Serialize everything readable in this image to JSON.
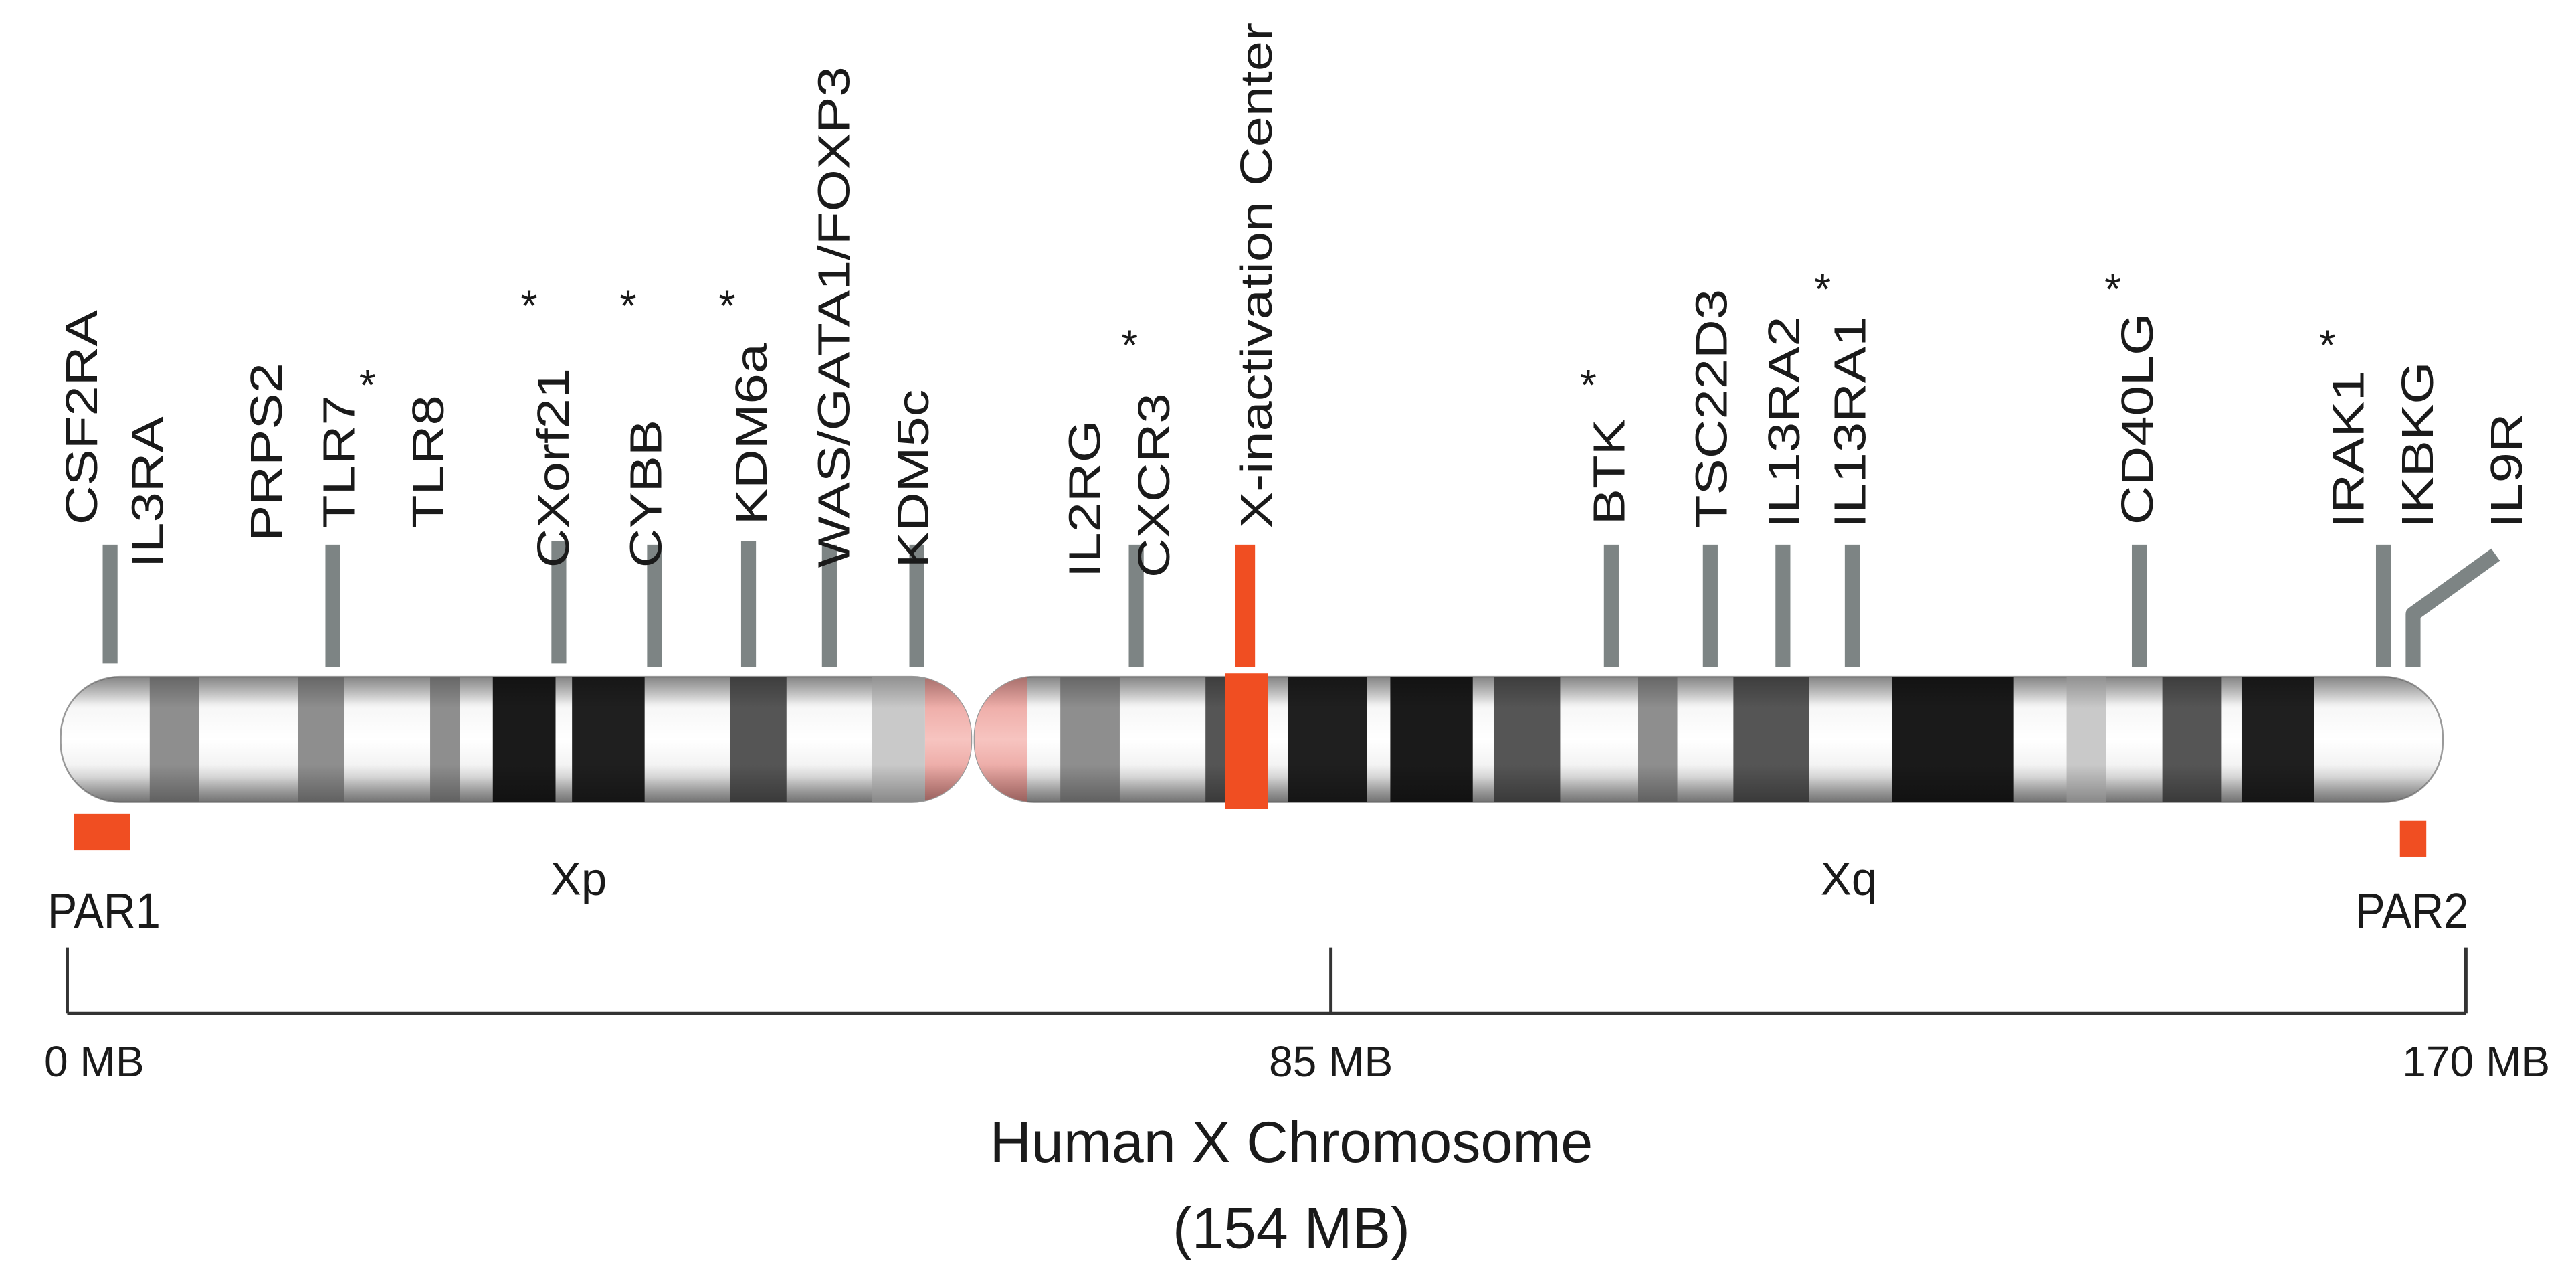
{
  "colors": {
    "gene_marker": "#7d8484",
    "highlight": "#f04e22",
    "centromere": "#f3b1ad",
    "band_dark": "#1a1a1a",
    "band_medium": "#555555",
    "band_light": "#8e8e8e",
    "band_pale": "#c9c9c9",
    "chromosome_body": "#ffffff",
    "text": "#1a1a1a"
  },
  "genes": [
    {
      "label": "CSF2RA",
      "asterisk": false
    },
    {
      "label": "IL3RA",
      "asterisk": false
    },
    {
      "label": "PRPS2",
      "asterisk": false
    },
    {
      "label": "TLR7",
      "asterisk": true
    },
    {
      "label": "TLR8",
      "asterisk": false
    },
    {
      "label": "CXorf21",
      "asterisk": true
    },
    {
      "label": "CYBB",
      "asterisk": true
    },
    {
      "label": "KDM6a",
      "asterisk": true
    },
    {
      "label": "WAS/GATA1/FOXP3",
      "asterisk": false
    },
    {
      "label": "KDM5c",
      "asterisk": false
    },
    {
      "label": "IL2RG",
      "asterisk": false
    },
    {
      "label": "CXCR3",
      "asterisk": true
    },
    {
      "label": "X-inactivation Center",
      "asterisk": false,
      "highlight": true
    },
    {
      "label": "BTK",
      "asterisk": true
    },
    {
      "label": "TSC22D3",
      "asterisk": false
    },
    {
      "label": "IL13RA2",
      "asterisk": false
    },
    {
      "label": "IL13RA1",
      "asterisk": true
    },
    {
      "label": "CD40LG",
      "asterisk": true
    },
    {
      "label": "IRAK1",
      "asterisk": true
    },
    {
      "label": "IKBKG",
      "asterisk": false
    },
    {
      "label": "IL9R",
      "asterisk": false
    }
  ],
  "asterisk_symbol": "*",
  "arms": {
    "p": "Xp",
    "q": "Xq"
  },
  "regions": {
    "par1": "PAR1",
    "par2": "PAR2"
  },
  "scale": {
    "ticks": [
      "0 MB",
      "85 MB",
      "170 MB"
    ]
  },
  "title": {
    "line1": "Human X Chromosome",
    "line2": "(154 MB)"
  }
}
